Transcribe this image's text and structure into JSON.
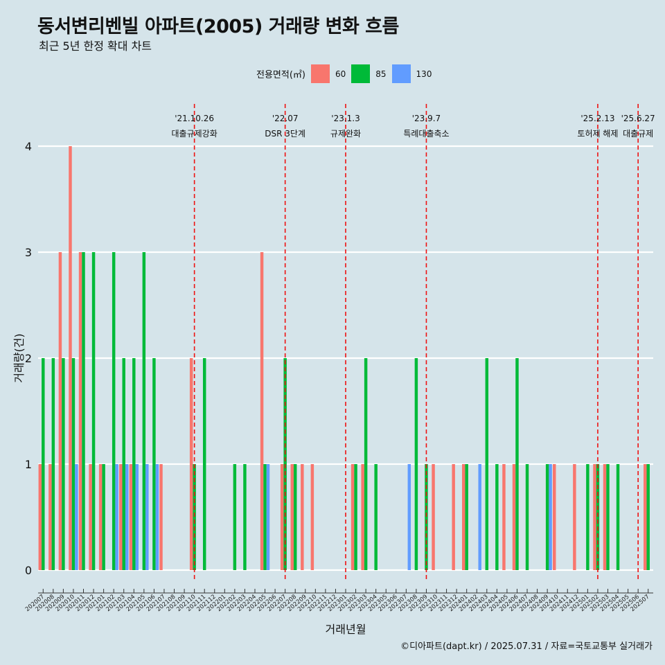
{
  "title": "동서변리벤빌 아파트(2005) 거래량 변화 흐름",
  "subtitle": "최근 5년 한정 확대 차트",
  "legend": {
    "title": "전용면적(㎡)",
    "items": [
      {
        "label": "60",
        "color": "#f8766d"
      },
      {
        "label": "85",
        "color": "#00ba38"
      },
      {
        "label": "130",
        "color": "#619cff"
      }
    ]
  },
  "caption": "©디아파트(dapt.kr) / 2025.07.31 / 자료=국토교통부 실거래가",
  "chart_data": {
    "type": "bar",
    "xlabel": "거래년월",
    "ylabel": "거래량(건)",
    "ylim": [
      0,
      4
    ],
    "yticks": [
      0,
      1,
      2,
      3,
      4
    ],
    "categories": [
      "202007",
      "202008",
      "202009",
      "202010",
      "202011",
      "202012",
      "202101",
      "202102",
      "202103",
      "202104",
      "202105",
      "202106",
      "202107",
      "202108",
      "202109",
      "202110",
      "202111",
      "202112",
      "202201",
      "202202",
      "202203",
      "202204",
      "202205",
      "202206",
      "202207",
      "202208",
      "202209",
      "202210",
      "202211",
      "202212",
      "202301",
      "202302",
      "202303",
      "202304",
      "202305",
      "202306",
      "202307",
      "202308",
      "202309",
      "202310",
      "202311",
      "202312",
      "202401",
      "202402",
      "202403",
      "202404",
      "202405",
      "202406",
      "202407",
      "202408",
      "202409",
      "202410",
      "202411",
      "202412",
      "202501",
      "202502",
      "202503",
      "202504",
      "202505",
      "202506",
      "202507"
    ],
    "series": [
      {
        "name": "60",
        "color": "#f8766d",
        "values": [
          1,
          1,
          3,
          4,
          3,
          1,
          1,
          0,
          1,
          1,
          0,
          0,
          1,
          0,
          0,
          2,
          0,
          0,
          0,
          0,
          0,
          0,
          3,
          0,
          1,
          1,
          1,
          1,
          0,
          0,
          0,
          1,
          1,
          0,
          0,
          0,
          0,
          0,
          0,
          1,
          0,
          1,
          1,
          0,
          0,
          0,
          1,
          1,
          0,
          0,
          0,
          1,
          0,
          1,
          0,
          1,
          1,
          0,
          0,
          0,
          1
        ]
      },
      {
        "name": "85",
        "color": "#00ba38",
        "values": [
          2,
          2,
          2,
          2,
          3,
          3,
          1,
          3,
          2,
          2,
          3,
          2,
          0,
          0,
          0,
          1,
          2,
          0,
          0,
          1,
          1,
          0,
          1,
          0,
          2,
          1,
          0,
          0,
          0,
          0,
          0,
          1,
          2,
          1,
          0,
          0,
          0,
          2,
          1,
          0,
          0,
          0,
          1,
          0,
          2,
          1,
          0,
          2,
          1,
          0,
          1,
          0,
          0,
          0,
          1,
          1,
          1,
          1,
          0,
          0,
          1
        ]
      },
      {
        "name": "130",
        "color": "#619cff",
        "values": [
          0,
          0,
          0,
          1,
          0,
          0,
          0,
          1,
          1,
          1,
          1,
          1,
          0,
          0,
          0,
          0,
          0,
          0,
          0,
          0,
          0,
          0,
          1,
          0,
          0,
          0,
          0,
          0,
          0,
          0,
          0,
          0,
          0,
          0,
          0,
          0,
          1,
          0,
          0,
          0,
          0,
          0,
          0,
          1,
          0,
          0,
          0,
          0,
          0,
          0,
          1,
          0,
          0,
          0,
          0,
          0,
          0,
          0,
          0,
          0,
          0
        ]
      }
    ],
    "events": [
      {
        "x": "202110",
        "date": "'21.10.26",
        "label": "대출규제강화"
      },
      {
        "x": "202207",
        "date": "'22.07",
        "label": "DSR 3단계"
      },
      {
        "x": "202301",
        "date": "'23.1.3",
        "label": "규제완화"
      },
      {
        "x": "202309",
        "date": "'23.9.7",
        "label": "특례대출축소"
      },
      {
        "x": "202502",
        "date": "'25.2.13",
        "label": "토허제 해제"
      },
      {
        "x": "202506",
        "date": "'25.6.27",
        "label": "대출규제"
      }
    ],
    "grid": true,
    "legend_position": "top"
  }
}
